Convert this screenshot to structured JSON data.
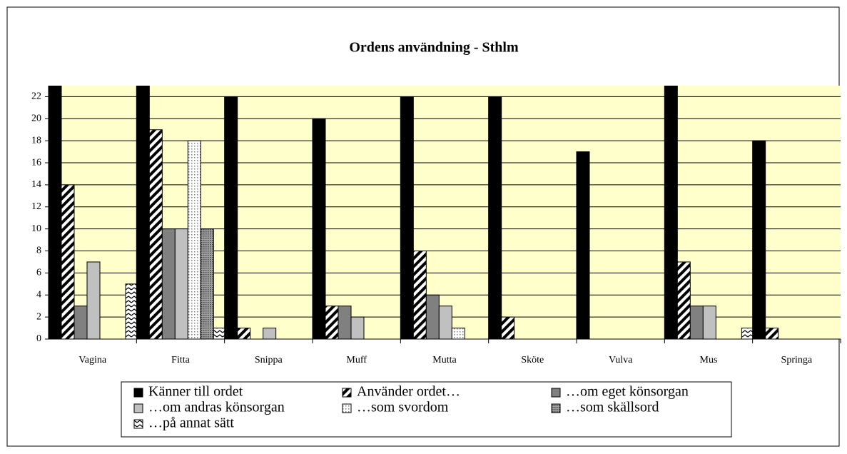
{
  "chart_data": {
    "type": "bar",
    "title": "Ordens användning - Sthlm",
    "categories": [
      "Vagina",
      "Fitta",
      "Snippa",
      "Muff",
      "Mutta",
      "Sköte",
      "Vulva",
      "Mus",
      "Springa"
    ],
    "series": [
      {
        "name": "Känner till ordet",
        "color": "#000000",
        "pattern": "solid",
        "values": [
          23,
          23,
          22,
          20,
          22,
          22,
          17,
          23,
          18
        ]
      },
      {
        "name": "Använder ordet…",
        "color": "#000000",
        "pattern": "diagonal",
        "values": [
          14,
          19,
          1,
          3,
          8,
          2,
          0,
          7,
          1
        ]
      },
      {
        "name": "…om eget könsorgan",
        "color": "#808080",
        "pattern": "solid",
        "values": [
          3,
          10,
          0,
          3,
          4,
          0,
          0,
          3,
          0
        ]
      },
      {
        "name": "…om andras könsorgan",
        "color": "#c0c0c0",
        "pattern": "solid",
        "values": [
          7,
          10,
          1,
          2,
          3,
          0,
          0,
          3,
          0
        ]
      },
      {
        "name": "…som svordom",
        "color": "#808080",
        "pattern": "dots",
        "values": [
          0,
          18,
          0,
          0,
          1,
          0,
          0,
          0,
          0
        ]
      },
      {
        "name": "…som skällsord",
        "color": "#404040",
        "pattern": "dense-dots",
        "values": [
          0,
          10,
          0,
          0,
          0,
          0,
          0,
          0,
          0
        ]
      },
      {
        "name": "…på annat sätt",
        "color": "#000000",
        "pattern": "zigzag",
        "values": [
          5,
          1,
          0,
          0,
          0,
          0,
          0,
          1,
          0
        ]
      }
    ],
    "ylim": [
      0,
      23
    ],
    "yticks": [
      0,
      2,
      4,
      6,
      8,
      10,
      12,
      14,
      16,
      18,
      20,
      22
    ],
    "grid": true,
    "plot_background": "#ffffcc",
    "legend": "bottom"
  }
}
